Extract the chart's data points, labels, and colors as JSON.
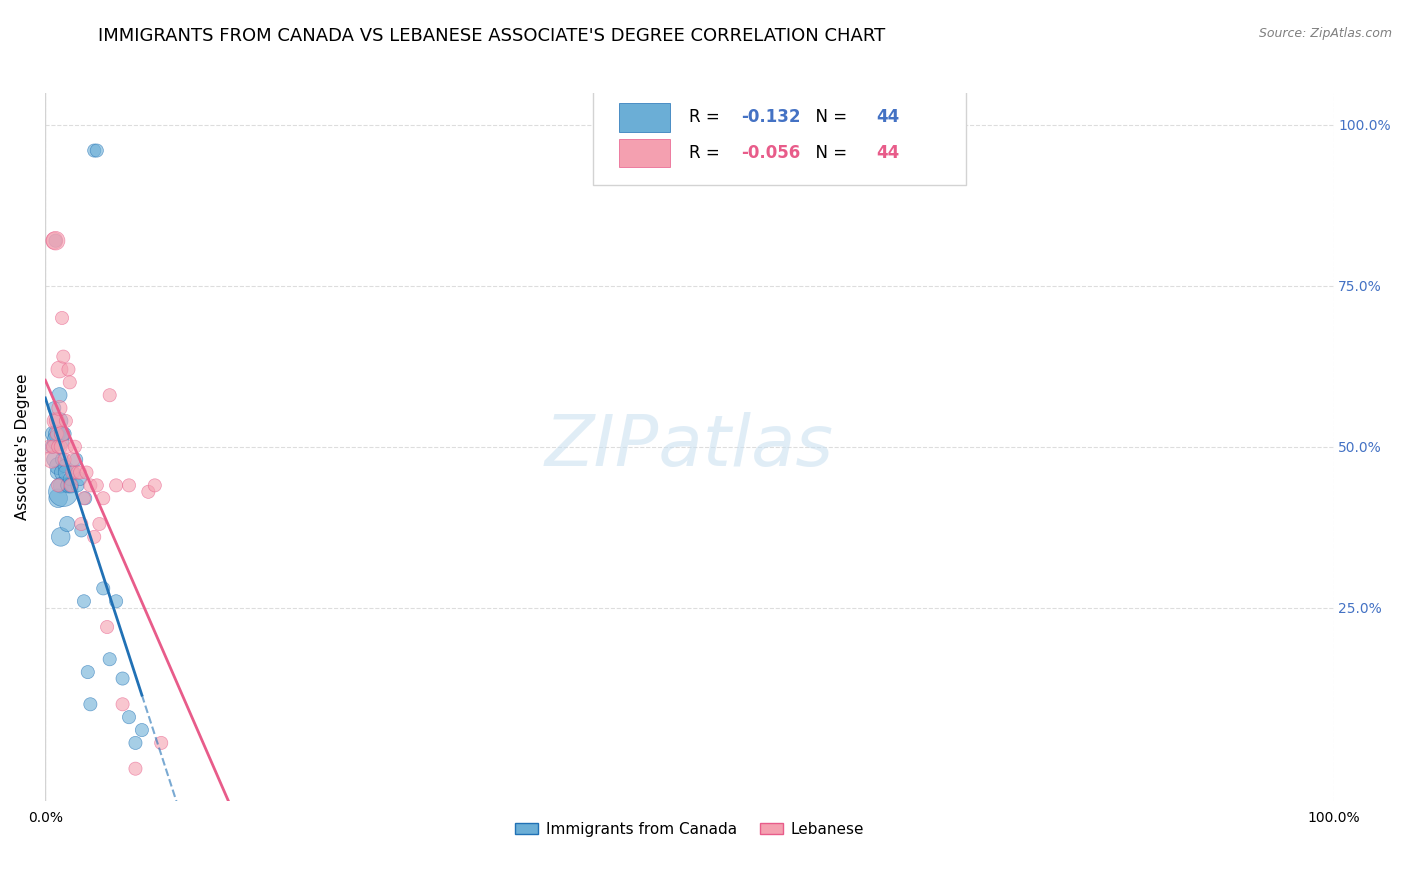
{
  "title": "IMMIGRANTS FROM CANADA VS LEBANESE ASSOCIATE'S DEGREE CORRELATION CHART",
  "source": "Source: ZipAtlas.com",
  "xlabel": "",
  "ylabel": "Associate's Degree",
  "watermark": "ZIPatlas",
  "canada_color": "#6baed6",
  "lebanese_color": "#f4a0b0",
  "canada_line_color": "#2171b5",
  "lebanese_line_color": "#e85c8a",
  "canada_R": "-0.132",
  "canada_N": "44",
  "lebanese_R": "-0.056",
  "lebanese_N": "44",
  "canada_scatter_x": [
    0.005,
    0.006,
    0.007,
    0.007,
    0.008,
    0.009,
    0.009,
    0.01,
    0.01,
    0.01,
    0.011,
    0.011,
    0.012,
    0.012,
    0.013,
    0.013,
    0.013,
    0.014,
    0.015,
    0.015,
    0.016,
    0.017,
    0.017,
    0.018,
    0.019,
    0.02,
    0.022,
    0.024,
    0.025,
    0.027,
    0.028,
    0.03,
    0.031,
    0.033,
    0.035,
    0.038,
    0.04,
    0.045,
    0.05,
    0.055,
    0.06,
    0.065,
    0.07,
    0.075
  ],
  "canada_scatter_y": [
    0.5,
    0.52,
    0.48,
    0.56,
    0.82,
    0.52,
    0.46,
    0.51,
    0.47,
    0.42,
    0.58,
    0.54,
    0.36,
    0.44,
    0.52,
    0.46,
    0.48,
    0.43,
    0.52,
    0.47,
    0.46,
    0.44,
    0.38,
    0.44,
    0.45,
    0.44,
    0.46,
    0.48,
    0.44,
    0.45,
    0.37,
    0.26,
    0.42,
    0.15,
    0.1,
    0.96,
    0.96,
    0.28,
    0.17,
    0.26,
    0.14,
    0.08,
    0.04,
    0.06
  ],
  "canada_scatter_size": [
    30,
    40,
    40,
    30,
    30,
    50,
    30,
    80,
    50,
    60,
    40,
    50,
    60,
    40,
    40,
    40,
    30,
    150,
    30,
    30,
    40,
    30,
    40,
    40,
    30,
    40,
    30,
    30,
    30,
    30,
    30,
    30,
    30,
    30,
    30,
    30,
    30,
    30,
    30,
    30,
    30,
    30,
    30,
    30
  ],
  "lebanese_scatter_x": [
    0.003,
    0.005,
    0.006,
    0.007,
    0.008,
    0.008,
    0.009,
    0.009,
    0.01,
    0.01,
    0.011,
    0.011,
    0.012,
    0.013,
    0.013,
    0.014,
    0.015,
    0.016,
    0.017,
    0.018,
    0.019,
    0.02,
    0.021,
    0.022,
    0.023,
    0.025,
    0.027,
    0.028,
    0.03,
    0.032,
    0.035,
    0.038,
    0.04,
    0.042,
    0.045,
    0.048,
    0.05,
    0.055,
    0.06,
    0.065,
    0.07,
    0.08,
    0.085,
    0.09
  ],
  "lebanese_scatter_y": [
    0.5,
    0.48,
    0.5,
    0.82,
    0.82,
    0.54,
    0.54,
    0.52,
    0.5,
    0.44,
    0.62,
    0.56,
    0.5,
    0.7,
    0.52,
    0.64,
    0.48,
    0.54,
    0.5,
    0.62,
    0.6,
    0.44,
    0.46,
    0.48,
    0.5,
    0.46,
    0.46,
    0.38,
    0.42,
    0.46,
    0.44,
    0.36,
    0.44,
    0.38,
    0.42,
    0.22,
    0.58,
    0.44,
    0.1,
    0.44,
    0.0,
    0.43,
    0.44,
    0.04
  ],
  "lebanese_scatter_size": [
    30,
    50,
    30,
    50,
    60,
    50,
    40,
    30,
    30,
    30,
    50,
    40,
    30,
    30,
    40,
    30,
    30,
    30,
    30,
    30,
    30,
    30,
    30,
    30,
    30,
    30,
    30,
    30,
    30,
    30,
    30,
    30,
    30,
    30,
    30,
    30,
    30,
    30,
    30,
    30,
    30,
    30,
    30,
    30
  ],
  "xlim": [
    0.0,
    1.0
  ],
  "ylim": [
    0.0,
    1.0
  ],
  "x_ticks": [
    0.0,
    0.2,
    0.4,
    0.6,
    0.8,
    1.0
  ],
  "x_tick_labels": [
    "0.0%",
    "",
    "",
    "",
    "",
    "100.0%"
  ],
  "y_ticks": [
    0.0,
    0.25,
    0.5,
    0.75,
    1.0
  ],
  "y_tick_labels": [
    "",
    "25.0%",
    "50.0%",
    "75.0%",
    "100.0%"
  ],
  "grid_color": "#dddddd",
  "background_color": "#ffffff",
  "title_fontsize": 13,
  "axis_fontsize": 11
}
